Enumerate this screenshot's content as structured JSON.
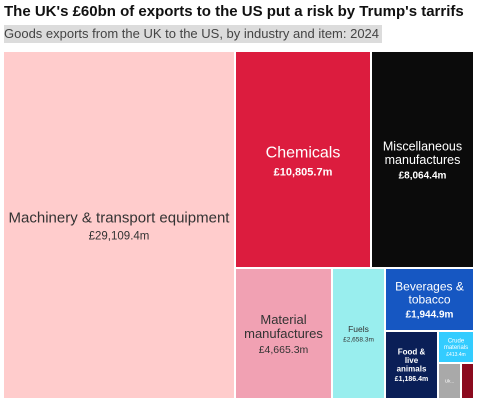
{
  "title": "The UK's £60bn of exports to the US put a risk by Trump's tarrifs",
  "subtitle": "Goods exports from the UK to the US, by industry and item: 2024",
  "chart_data": {
    "type": "treemap",
    "title": "The UK's £60bn of exports to the US put a risk by Trump's tarrifs",
    "subtitle": "Goods exports from the UK to the US, by industry and item: 2024",
    "unit": "£m",
    "items": [
      {
        "name": "Machinery & transport equipment",
        "value": 29109.4,
        "value_label": "£29,109.4m",
        "color": "#ffcccc",
        "text_color": "#333333"
      },
      {
        "name": "Chemicals",
        "value": 10805.7,
        "value_label": "£10,805.7m",
        "color": "#dc1c3e",
        "text_color": "#ffffff"
      },
      {
        "name": "Miscellaneous manufactures",
        "value": 8064.4,
        "value_label": "£8,064.4m",
        "color": "#0b0b0b",
        "text_color": "#ffffff"
      },
      {
        "name": "Material manufactures",
        "value": 4665.3,
        "value_label": "£4,665.3m",
        "color": "#f1a1b3",
        "text_color": "#333333"
      },
      {
        "name": "Fuels",
        "value": 2658.3,
        "value_label": "£2,658.3m",
        "color": "#99eeee",
        "text_color": "#333333"
      },
      {
        "name": "Beverages & tobacco",
        "value": 1944.9,
        "value_label": "£1,944.9m",
        "color": "#1657c2",
        "text_color": "#ffffff"
      },
      {
        "name": "Food & live animals",
        "value": 1186.4,
        "value_label": "£1,186.4m",
        "color": "#0a1f57",
        "text_color": "#ffffff"
      },
      {
        "name": "Crude materials",
        "value": 413.4,
        "value_label": "£413.4m",
        "color": "#33ccff",
        "text_color": "#ffffff"
      },
      {
        "name": "Uk...",
        "value": 350,
        "value_label": "",
        "color": "#a9a9a9",
        "text_color": "#ffffff"
      },
      {
        "name": "",
        "value": 250,
        "value_label": "",
        "color": "#8b0a1e",
        "text_color": "#ffffff"
      }
    ]
  }
}
